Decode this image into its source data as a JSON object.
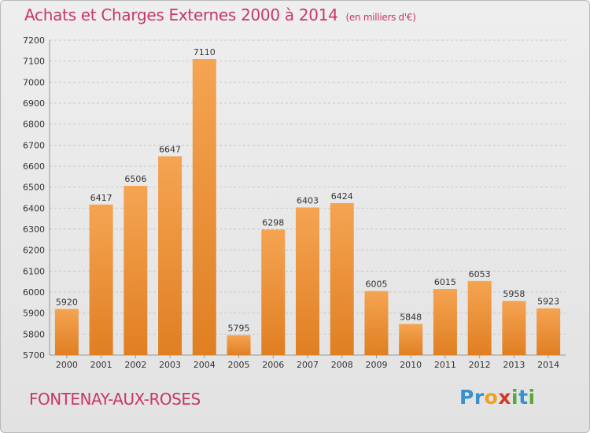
{
  "title": "Achats et Charges Externes 2000 à 2014",
  "subtitle": "(en milliers d'€)",
  "location": "FONTENAY-AUX-ROSES",
  "logo": {
    "letters": [
      "P",
      "r",
      "o",
      "x",
      "i",
      "t",
      "i"
    ],
    "colors": [
      "#3a8fd0",
      "#3a8fd0",
      "#f0a020",
      "#d23b2a",
      "#58a83a",
      "#3a8fd0",
      "#58a83a"
    ]
  },
  "colors": {
    "title": "#c8366e",
    "bar_light": "#f5a452",
    "bar_dark": "#e07f22",
    "grid": "#c9c9c9"
  },
  "chart_data": {
    "type": "bar",
    "title": "Achats et Charges Externes 2000 à 2014",
    "subtitle": "(en milliers d'€)",
    "categories": [
      "2000",
      "2001",
      "2002",
      "2003",
      "2004",
      "2005",
      "2006",
      "2007",
      "2008",
      "2009",
      "2010",
      "2011",
      "2012",
      "2013",
      "2014"
    ],
    "values": [
      5920,
      6417,
      6506,
      6647,
      7110,
      5795,
      6298,
      6403,
      6424,
      6005,
      5848,
      6015,
      6053,
      5958,
      5923
    ],
    "ylim": [
      5700,
      7200
    ],
    "yticks": [
      5700,
      5800,
      5900,
      6000,
      6100,
      6200,
      6300,
      6400,
      6500,
      6600,
      6700,
      6800,
      6900,
      7000,
      7100,
      7200
    ],
    "grid": true,
    "xlabel": "",
    "ylabel": ""
  }
}
